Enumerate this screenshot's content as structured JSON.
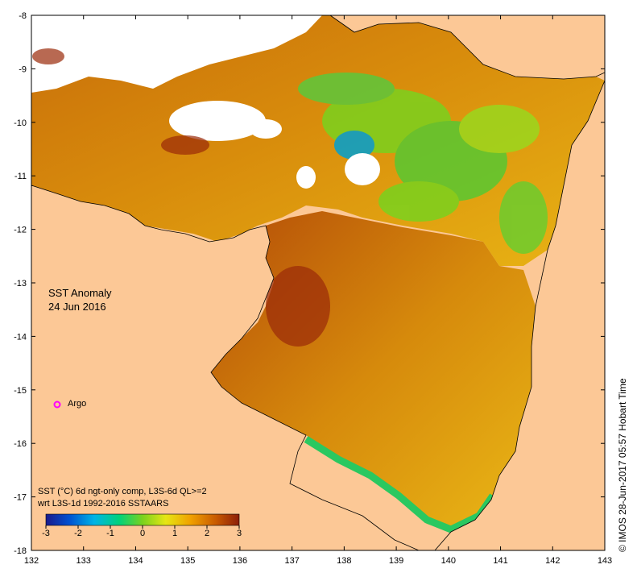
{
  "title": {
    "line1": "SST Anomaly",
    "line2": "24 Jun 2016"
  },
  "caption": {
    "line1": "SST (°C) 6d ngt-only comp, L3S-6d QL>=2",
    "line2": "wrt L3S-1d 1992-2016 SSTAARS"
  },
  "colorbar": {
    "min": -3,
    "max": 3,
    "tick_labels": [
      "-3",
      "-2",
      "-1",
      "0",
      "1",
      "2",
      "3"
    ],
    "colors": [
      "#1a1a8c",
      "#0050d0",
      "#00b4e6",
      "#00d27a",
      "#7ad21e",
      "#e6e614",
      "#f0a000",
      "#c85a00",
      "#8c1e0a"
    ]
  },
  "axes": {
    "lon_range": [
      132,
      143
    ],
    "lat_range": [
      -18,
      -8
    ],
    "x_tick_labels": [
      "132",
      "133",
      "134",
      "135",
      "136",
      "137",
      "138",
      "139",
      "140",
      "141",
      "142",
      "143"
    ],
    "y_tick_labels": [
      "-8",
      "-9",
      "-10",
      "-11",
      "-12",
      "-13",
      "-14",
      "-15",
      "-16",
      "-17",
      "-18"
    ]
  },
  "markers": [
    {
      "name": "Argo",
      "label": "Argo",
      "lon": 132.5,
      "lat": -15.3,
      "color": "#ff00ff"
    }
  ],
  "credit": "©  IMOS 28-Jun-2017 05:57 Hobart Time",
  "colors": {
    "land": "#fcc896",
    "frame": "#000000"
  }
}
